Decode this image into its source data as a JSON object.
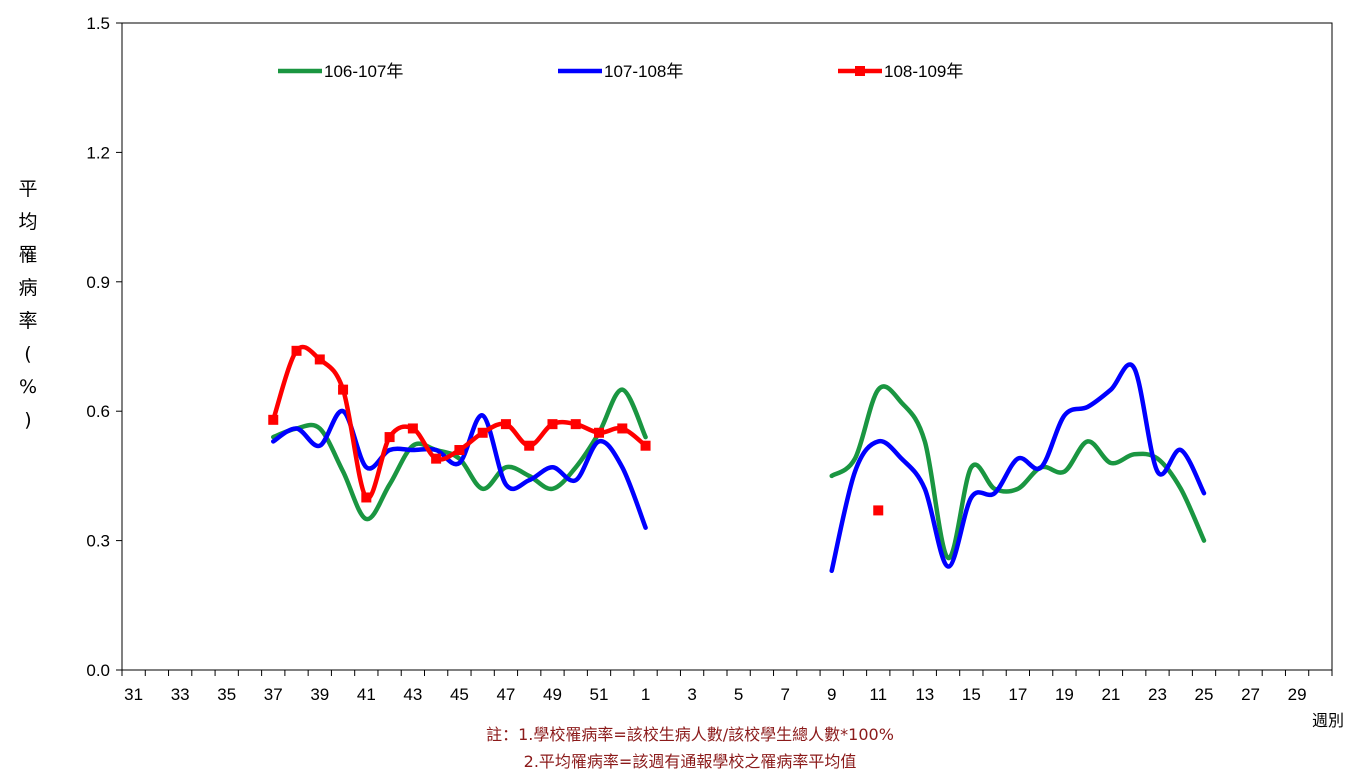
{
  "chart_data": {
    "type": "line",
    "xlabel": "週別",
    "ylabel": "平均罹病率(%)",
    "ylim": [
      0,
      1.5
    ],
    "y_ticks": [
      "0.0",
      "0.3",
      "0.6",
      "0.9",
      "1.2",
      "1.5"
    ],
    "x_ticks": [
      "31",
      "33",
      "35",
      "37",
      "39",
      "41",
      "43",
      "45",
      "47",
      "49",
      "51",
      "1",
      "3",
      "5",
      "7",
      "9",
      "11",
      "13",
      "15",
      "17",
      "19",
      "21",
      "23",
      "25",
      "27",
      "29"
    ],
    "legend_position": "top",
    "series": [
      {
        "name": "106-107年",
        "color": "#1a9641",
        "marker": "none",
        "segments": [
          [
            [
              "37",
              0.54
            ],
            [
              "38",
              0.56
            ],
            [
              "39",
              0.56
            ],
            [
              "40",
              0.46
            ],
            [
              "41",
              0.35
            ],
            [
              "42",
              0.43
            ],
            [
              "43",
              0.52
            ],
            [
              "44",
              0.51
            ],
            [
              "45",
              0.49
            ],
            [
              "46",
              0.42
            ],
            [
              "47",
              0.47
            ],
            [
              "48",
              0.45
            ],
            [
              "49",
              0.42
            ],
            [
              "50",
              0.47
            ],
            [
              "51",
              0.55
            ],
            [
              "52",
              0.65
            ],
            [
              "1",
              0.54
            ]
          ],
          [
            [
              "9",
              0.45
            ],
            [
              "10",
              0.49
            ],
            [
              "11",
              0.65
            ],
            [
              "12",
              0.62
            ],
            [
              "13",
              0.53
            ],
            [
              "14",
              0.26
            ],
            [
              "15",
              0.47
            ],
            [
              "16",
              0.42
            ],
            [
              "17",
              0.42
            ],
            [
              "18",
              0.47
            ],
            [
              "19",
              0.46
            ],
            [
              "20",
              0.53
            ],
            [
              "21",
              0.48
            ],
            [
              "22",
              0.5
            ],
            [
              "23",
              0.49
            ],
            [
              "24",
              0.42
            ],
            [
              "25",
              0.3
            ]
          ]
        ]
      },
      {
        "name": "107-108年",
        "color": "#0000ff",
        "marker": "none",
        "segments": [
          [
            [
              "37",
              0.53
            ],
            [
              "38",
              0.56
            ],
            [
              "39",
              0.52
            ],
            [
              "40",
              0.6
            ],
            [
              "41",
              0.47
            ],
            [
              "42",
              0.51
            ],
            [
              "43",
              0.51
            ],
            [
              "44",
              0.51
            ],
            [
              "45",
              0.48
            ],
            [
              "46",
              0.59
            ],
            [
              "47",
              0.43
            ],
            [
              "48",
              0.44
            ],
            [
              "49",
              0.47
            ],
            [
              "50",
              0.44
            ],
            [
              "51",
              0.53
            ],
            [
              "52",
              0.47
            ],
            [
              "1",
              0.33
            ]
          ],
          [
            [
              "9",
              0.23
            ],
            [
              "10",
              0.46
            ],
            [
              "11",
              0.53
            ],
            [
              "12",
              0.49
            ],
            [
              "13",
              0.42
            ],
            [
              "14",
              0.24
            ],
            [
              "15",
              0.4
            ],
            [
              "16",
              0.41
            ],
            [
              "17",
              0.49
            ],
            [
              "18",
              0.47
            ],
            [
              "19",
              0.59
            ],
            [
              "20",
              0.61
            ],
            [
              "21",
              0.65
            ],
            [
              "22",
              0.7
            ],
            [
              "23",
              0.46
            ],
            [
              "24",
              0.51
            ],
            [
              "25",
              0.41
            ]
          ]
        ]
      },
      {
        "name": "108-109年",
        "color": "#ff0000",
        "marker": "square",
        "segments": [
          [
            [
              "37",
              0.58
            ],
            [
              "38",
              0.74
            ],
            [
              "39",
              0.72
            ],
            [
              "40",
              0.65
            ],
            [
              "41",
              0.4
            ],
            [
              "42",
              0.54
            ],
            [
              "43",
              0.56
            ],
            [
              "44",
              0.49
            ],
            [
              "45",
              0.51
            ],
            [
              "46",
              0.55
            ],
            [
              "47",
              0.57
            ],
            [
              "48",
              0.52
            ],
            [
              "49",
              0.57
            ],
            [
              "50",
              0.57
            ],
            [
              "51",
              0.55
            ],
            [
              "52",
              0.56
            ],
            [
              "1",
              0.52
            ]
          ],
          [
            [
              "11",
              0.37
            ]
          ]
        ]
      }
    ]
  },
  "notes": [
    "註：1.學校罹病率=該校生病人數/該校學生總人數*100%",
    "2.平均罹病率=該週有通報學校之罹病率平均值"
  ]
}
